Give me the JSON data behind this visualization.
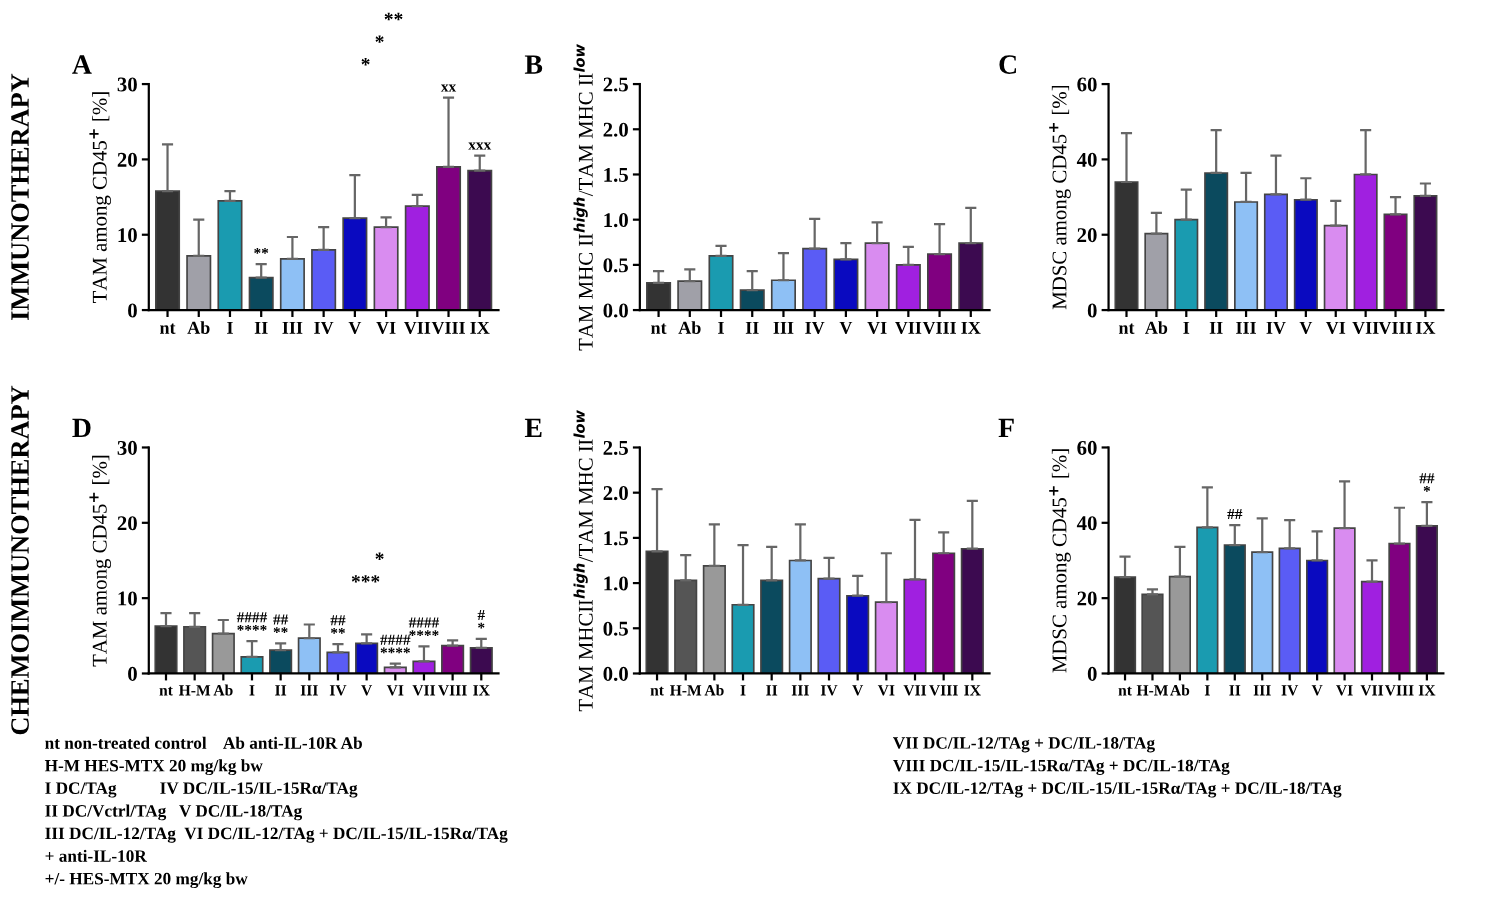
{
  "chart_data": [
    {
      "type": "bar",
      "title": "A",
      "ylabel": "TAM among CD45$^{+}$ [%]",
      "categories": [
        "nt",
        "Ab",
        "I",
        "II",
        "III",
        "IV",
        "V",
        "VI",
        "VII",
        "VIII",
        "IX"
      ],
      "values": [
        15.8,
        7.2,
        14.5,
        4.3,
        6.8,
        8.0,
        12.2,
        11.0,
        13.8,
        19.0,
        18.5
      ],
      "errors": [
        6.2,
        4.8,
        1.3,
        1.8,
        2.9,
        3.0,
        5.7,
        1.3,
        1.5,
        9.2,
        2.0
      ],
      "colors": [
        "#333333",
        "#a0a0a8",
        "#1a9bb0",
        "#0b4a5e",
        "#8ec0f5",
        "#5a5cf5",
        "#0a0ac0",
        "#d98cf0",
        "#a020e0",
        "#800080",
        "#3c0a50"
      ],
      "ylim": [
        0,
        30
      ],
      "yticks": [
        0,
        10,
        20,
        30
      ],
      "grid": false,
      "legend": false,
      "annotations": [
        "IMMUNOTHERAPY",
        "*",
        "*",
        "**",
        {
          "text": "**",
          "x": "II",
          "y": 6.1
        },
        {
          "text": "xx",
          "x": "VIII",
          "y": 28.2
        },
        {
          "text": "xxx",
          "x": "IX",
          "y": 20.5
        }
      ]
    },
    {
      "type": "bar",
      "title": "B",
      "ylabel": "TAM MHC II$^{high}$/TAM MHC II$^{low}$",
      "categories": [
        "nt",
        "Ab",
        "I",
        "II",
        "III",
        "IV",
        "V",
        "VI",
        "VII",
        "VIII",
        "IX"
      ],
      "values": [
        0.3,
        0.32,
        0.6,
        0.22,
        0.33,
        0.68,
        0.56,
        0.74,
        0.5,
        0.62,
        0.74
      ],
      "errors": [
        0.13,
        0.13,
        0.11,
        0.21,
        0.3,
        0.33,
        0.18,
        0.23,
        0.2,
        0.33,
        0.39
      ],
      "colors": [
        "#333333",
        "#a0a0a8",
        "#1a9bb0",
        "#0b4a5e",
        "#8ec0f5",
        "#5a5cf5",
        "#0a0ac0",
        "#d98cf0",
        "#a020e0",
        "#800080",
        "#3c0a50"
      ],
      "ylim": [
        0,
        2.5
      ],
      "yticks": [
        {
          "value": 0,
          "label": "0.0"
        },
        0.5,
        {
          "value": 1,
          "label": "1.0"
        },
        1.5,
        {
          "value": 2,
          "label": "2.0"
        },
        2.5
      ],
      "grid": false,
      "legend": false
    },
    {
      "type": "bar",
      "title": "C",
      "ylabel": "MDSC among CD45$^{+}$ [%]",
      "categories": [
        "nt",
        "Ab",
        "I",
        "II",
        "III",
        "IV",
        "V",
        "VI",
        "VII",
        "VIII",
        "IX"
      ],
      "values": [
        34,
        20.3,
        24,
        36.4,
        28.7,
        30.7,
        29.3,
        22.4,
        36,
        25.4,
        30.3
      ],
      "errors": [
        13,
        5.5,
        8,
        11.4,
        7.7,
        10.3,
        5.7,
        6.6,
        11.8,
        4.6,
        3.3
      ],
      "colors": [
        "#333333",
        "#a0a0a8",
        "#1a9bb0",
        "#0b4a5e",
        "#8ec0f5",
        "#5a5cf5",
        "#0a0ac0",
        "#d98cf0",
        "#a020e0",
        "#800080",
        "#3c0a50"
      ],
      "ylim": [
        0,
        60
      ],
      "yticks": [
        0,
        20,
        40,
        60
      ],
      "grid": false,
      "legend": false
    },
    {
      "type": "bar",
      "title": "D",
      "ylabel": "TAM among CD45$^{+}$ [%]",
      "categories": [
        "nt",
        "H-M",
        "Ab",
        "I",
        "II",
        "III",
        "IV",
        "V",
        "VI",
        "VII",
        "VIII",
        "IX"
      ],
      "values": [
        6.3,
        6.2,
        5.3,
        2.2,
        3.1,
        4.7,
        2.8,
        4.0,
        0.8,
        1.6,
        3.7,
        3.4
      ],
      "errors": [
        1.7,
        1.8,
        1.8,
        2.1,
        0.9,
        1.8,
        1.1,
        1.2,
        0.5,
        2.0,
        0.7,
        1.2
      ],
      "colors": [
        "#333333",
        "#555555",
        "#999999",
        "#1a9bb0",
        "#0b4a5e",
        "#8ec0f5",
        "#5a5cf5",
        "#0a0ac0",
        "#d98cf0",
        "#a020e0",
        "#800080",
        "#3c0a50"
      ],
      "ylim": [
        0,
        30
      ],
      "yticks": [
        0,
        10,
        20,
        30
      ],
      "grid": false,
      "legend": false,
      "annotations": [
        "CHEMOIMMUNOTHERAPY",
        "***",
        "*",
        {
          "text": "####\n****",
          "x": "I",
          "y": 4.3
        },
        {
          "text": "##\n**",
          "x": "II",
          "y": 4.0
        },
        {
          "text": "##\n**",
          "x": "IV",
          "y": 3.9
        },
        {
          "text": "####\n****",
          "x": "VI",
          "y": 1.3
        },
        {
          "text": "####\n****",
          "x": "VII",
          "y": 3.6
        },
        {
          "text": "#\n*",
          "x": "IX",
          "y": 4.6
        }
      ]
    },
    {
      "type": "bar",
      "title": "E",
      "ylabel": "TAM MHCII$^{high}$/TAM MHC II$^{low}$",
      "categories": [
        "nt",
        "H-M",
        "Ab",
        "I",
        "II",
        "III",
        "IV",
        "V",
        "VI",
        "VII",
        "VIII",
        "IX"
      ],
      "values": [
        1.35,
        1.03,
        1.19,
        0.76,
        1.03,
        1.25,
        1.05,
        0.86,
        0.79,
        1.04,
        1.33,
        1.38
      ],
      "errors": [
        0.69,
        0.28,
        0.46,
        0.66,
        0.37,
        0.4,
        0.23,
        0.22,
        0.54,
        0.66,
        0.23,
        0.53
      ],
      "colors": [
        "#333333",
        "#555555",
        "#999999",
        "#1a9bb0",
        "#0b4a5e",
        "#8ec0f5",
        "#5a5cf5",
        "#0a0ac0",
        "#d98cf0",
        "#a020e0",
        "#800080",
        "#3c0a50"
      ],
      "ylim": [
        0,
        2.5
      ],
      "yticks": [
        {
          "value": 0,
          "label": "0.0"
        },
        0.5,
        {
          "value": 1,
          "label": "1.0"
        },
        1.5,
        {
          "value": 2,
          "label": "2.0"
        },
        2.5
      ],
      "grid": false,
      "legend": false,
      "annotations": [
        "nt non-treated control    Ab anti-IL-10R Ab",
        "H-M HES-MTX 20 mg/kg bw",
        "I DC/TAg          IV DC/IL-15/IL-15Rα/TAg",
        "II DC/Vctrl/TAg   V DC/IL-18/TAg",
        "III DC/IL-12/TAg  VI DC/IL-12/TAg + DC/IL-15/IL-15Rα/TAg",
        "+ anti-IL-10R",
        "+/- HES-MTX 20 mg/kg bw"
      ]
    },
    {
      "type": "bar",
      "title": "F",
      "ylabel": "MDSC among CD45$^{+}$ [%]",
      "categories": [
        "nt",
        "H-M",
        "Ab",
        "I",
        "II",
        "III",
        "IV",
        "V",
        "VI",
        "VII",
        "VIII",
        "IX"
      ],
      "values": [
        25.6,
        21,
        25.7,
        38.8,
        34.1,
        32.2,
        33.2,
        30,
        38.6,
        24.4,
        34.5,
        39.2
      ],
      "errors": [
        5.4,
        1.3,
        7.9,
        10.6,
        5.3,
        9.0,
        7.5,
        7.7,
        12.4,
        5.6,
        9.5,
        6.3
      ],
      "colors": [
        "#333333",
        "#555555",
        "#999999",
        "#1a9bb0",
        "#0b4a5e",
        "#8ec0f5",
        "#5a5cf5",
        "#0a0ac0",
        "#d98cf0",
        "#a020e0",
        "#800080",
        "#3c0a50"
      ],
      "ylim": [
        0,
        60
      ],
      "yticks": [
        0,
        20,
        40,
        60
      ],
      "grid": false,
      "legend": false,
      "annotations": [
        "VII DC/IL-12/TAg + DC/IL-18/TAg",
        "VIII DC/IL-15/IL-15Rα/TAg + DC/IL-18/TAg",
        "IX DC/IL-12/TAg + DC/IL-15/IL-15Rα/TAg + DC/IL-18/TAg",
        {
          "text": "##",
          "x": "II",
          "y": 39.4
        },
        {
          "text": "##\n*",
          "x": "IX",
          "y": 45.5
        }
      ]
    }
  ]
}
